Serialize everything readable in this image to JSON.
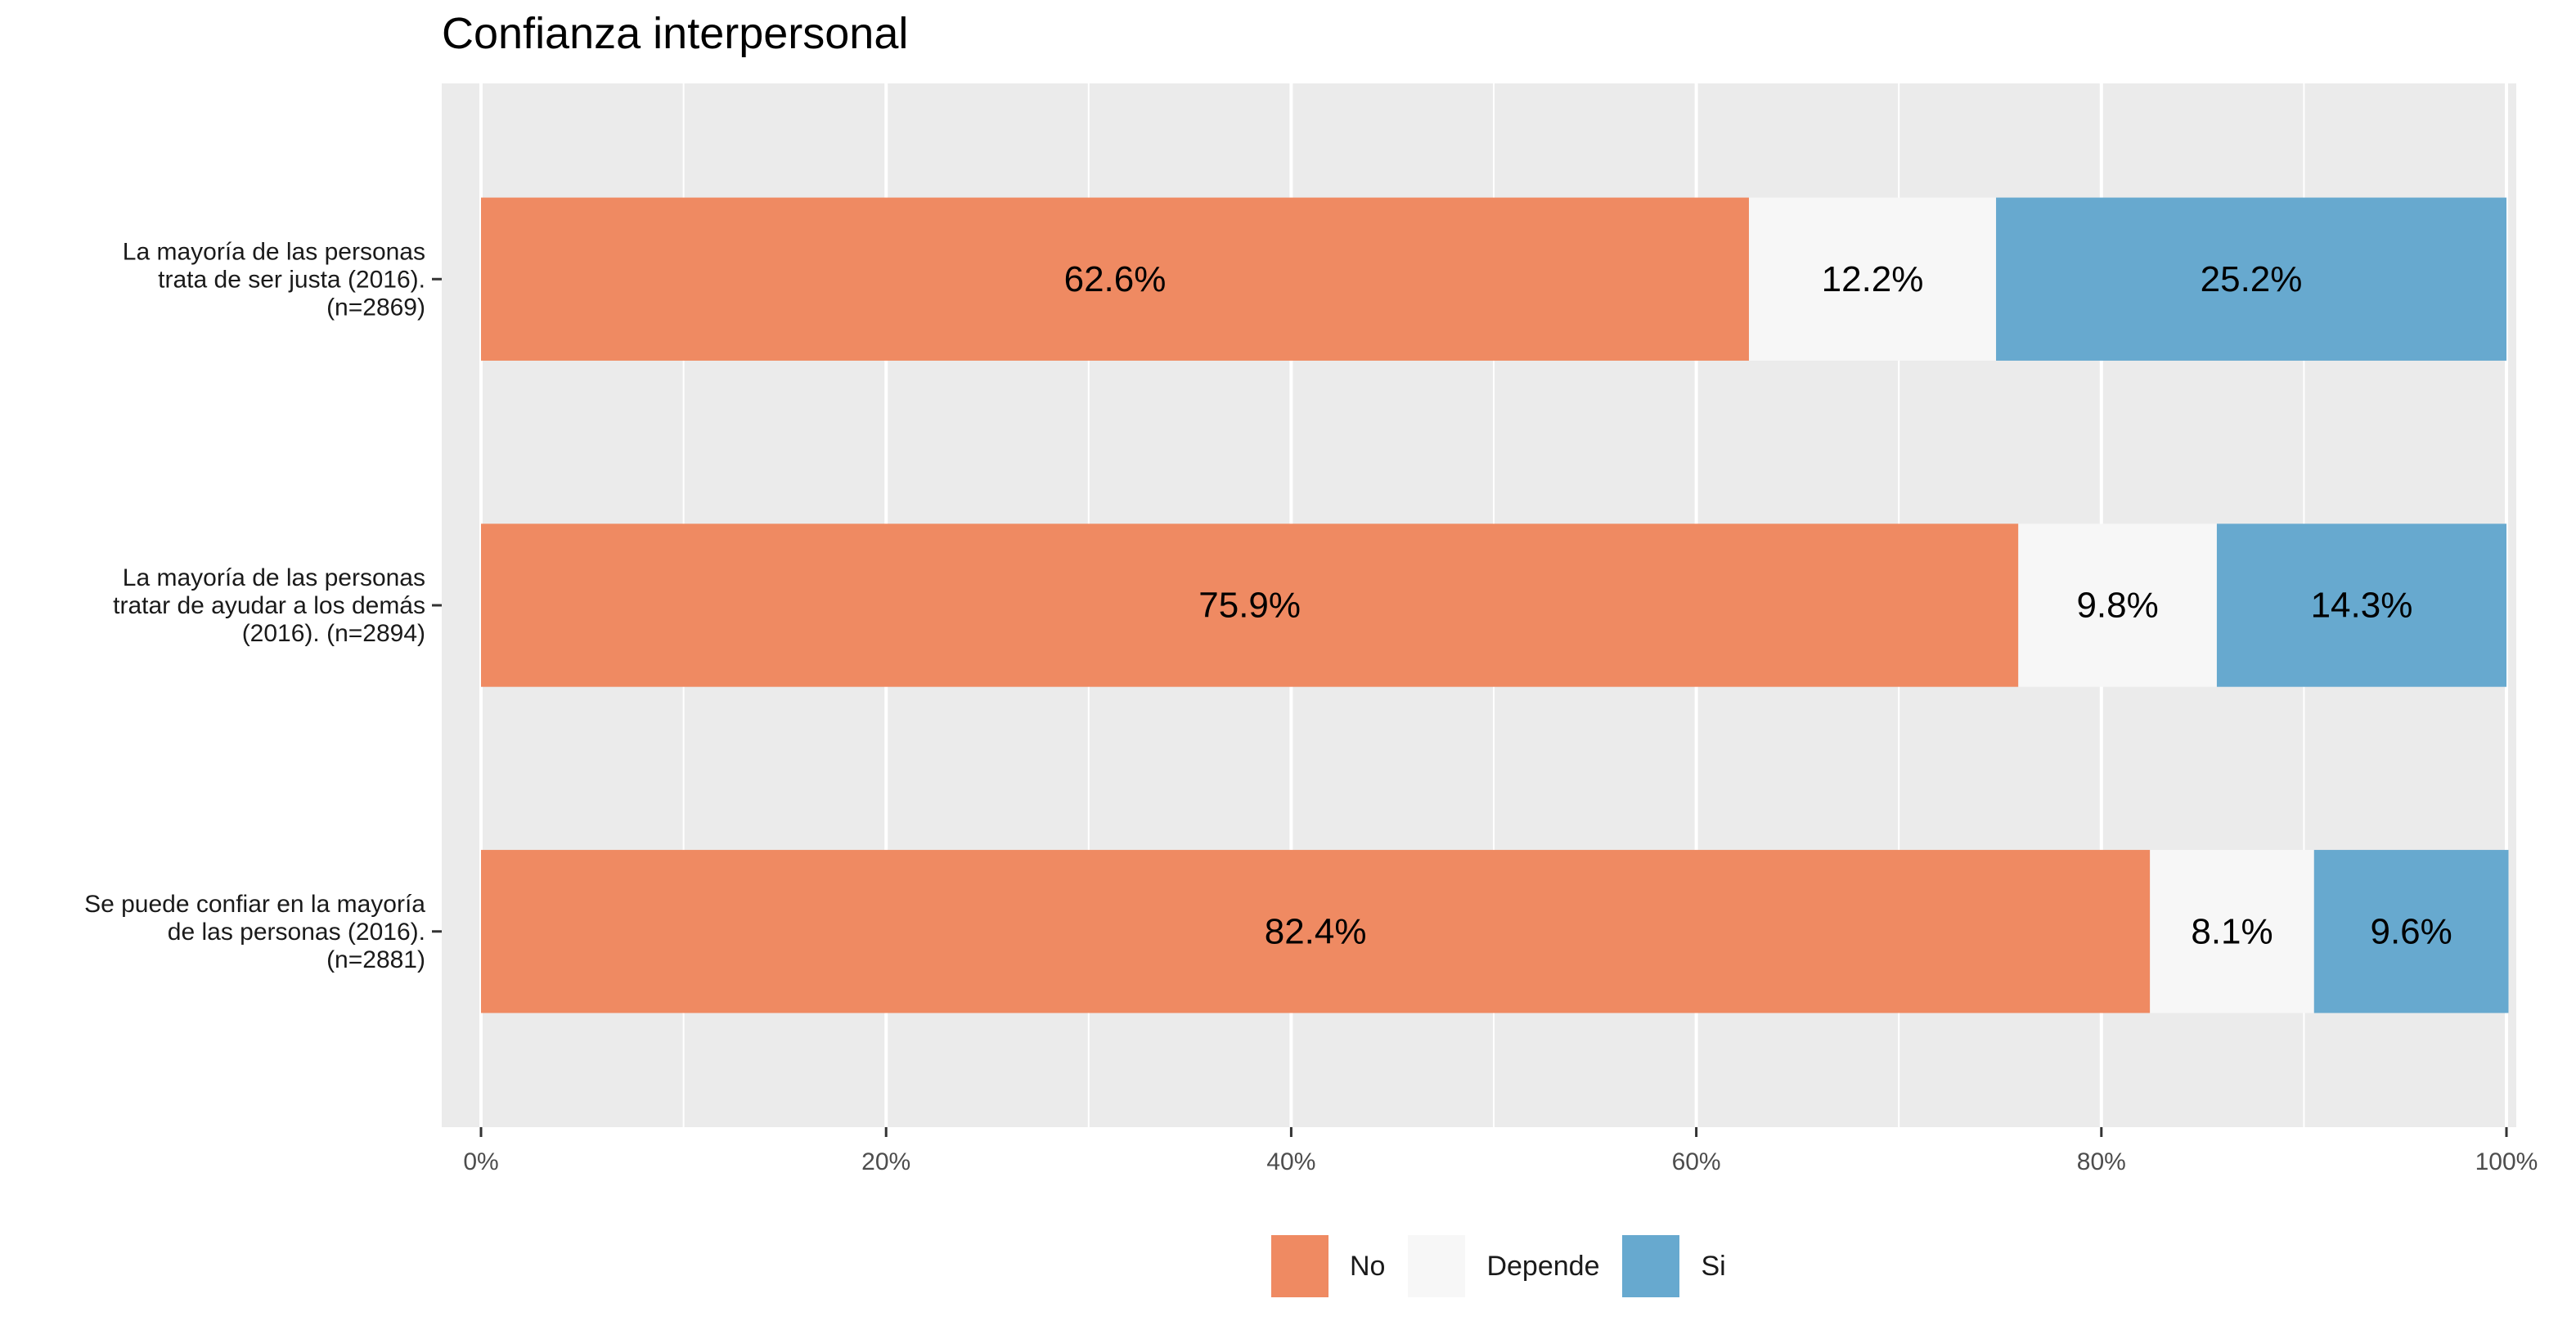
{
  "chart_data": {
    "type": "bar",
    "orientation": "horizontal",
    "stacked": true,
    "title": "Confianza interpersonal",
    "xlabel": "",
    "ylabel": "",
    "xlim": [
      0,
      100
    ],
    "x_ticks": [
      "0%",
      "20%",
      "40%",
      "60%",
      "80%",
      "100%"
    ],
    "grid": true,
    "legend_position": "bottom",
    "categories": [
      "La mayoría de las personas\ntrata de ser justa (2016).\n(n=2869)",
      "La mayoría de las personas\ntratar de ayudar a los demás\n(2016). (n=2894)",
      "Se puede confiar en la mayoría\nde las personas (2016).\n(n=2881)"
    ],
    "series": [
      {
        "name": "No",
        "color": "#EF8A62",
        "values": [
          62.6,
          75.9,
          82.4
        ],
        "labels": [
          "62.6%",
          "75.9%",
          "82.4%"
        ]
      },
      {
        "name": "Depende",
        "color": "#F7F7F7",
        "values": [
          12.2,
          9.8,
          8.1
        ],
        "labels": [
          "12.2%",
          "9.8%",
          "8.1%"
        ]
      },
      {
        "name": "Si",
        "color": "#67A9CF",
        "values": [
          25.2,
          14.3,
          9.6
        ],
        "labels": [
          "25.2%",
          "14.3%",
          "9.6%"
        ]
      }
    ]
  }
}
